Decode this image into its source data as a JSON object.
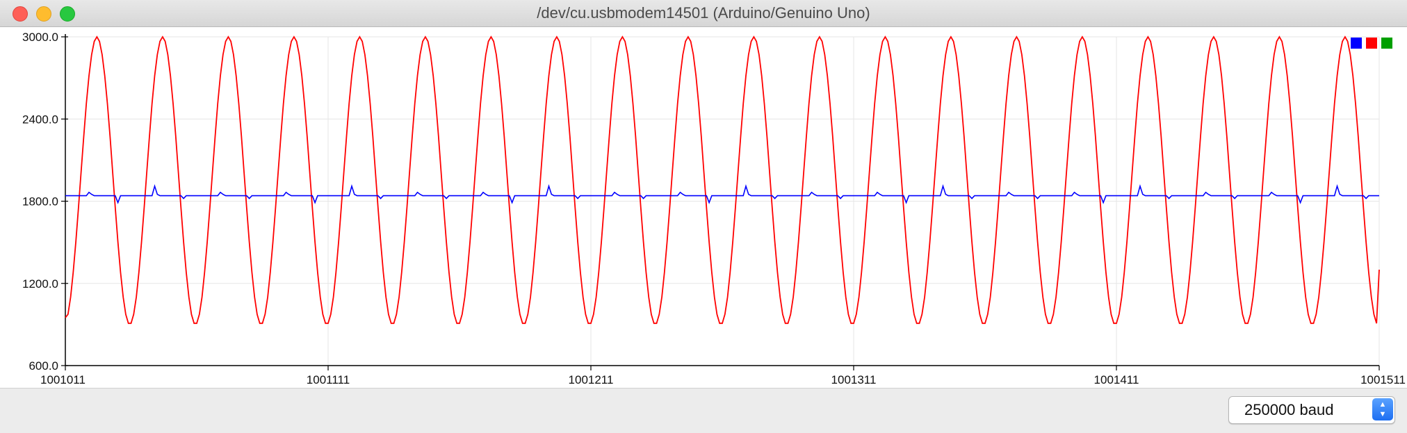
{
  "window": {
    "title": "/dev/cu.usbmodem14501 (Arduino/Genuino Uno)"
  },
  "colors": {
    "series_blue": "#0000ff",
    "series_red": "#ff0000",
    "series_green": "#00a000",
    "grid": "#e6e6e6",
    "axis": "#000000"
  },
  "footer": {
    "baud_label": "250000 baud",
    "arrows_icon": "up-down-chevron-icon"
  },
  "chart_data": {
    "type": "line",
    "title": "",
    "xlabel": "",
    "ylabel": "",
    "xlim": [
      1001011,
      1001511
    ],
    "ylim": [
      600,
      3000
    ],
    "x_ticks": [
      "1001011",
      "1001111",
      "1001211",
      "1001311",
      "1001411",
      "1001511"
    ],
    "y_ticks": [
      "3000.0",
      "2400.0",
      "1800.0",
      "1200.0",
      "600.0"
    ],
    "grid": true,
    "legend_placement": "top-right",
    "legend_entries": [
      "blue",
      "red",
      "green"
    ],
    "series": [
      {
        "color": "#ff0000",
        "x_start": 1001011,
        "x_end": 1001511,
        "description_values": {
          "min": 900,
          "max": 3000,
          "period": 25
        },
        "peaks_x": [
          1001023,
          1001048,
          1001073,
          1001098,
          1001123,
          1001148,
          1001173,
          1001198,
          1001223,
          1001248,
          1001273,
          1001298,
          1001323,
          1001348,
          1001373,
          1001398,
          1001423,
          1001448,
          1001473,
          1001498
        ],
        "end_value": 1300
      },
      {
        "color": "#0000ff",
        "x_start": 1001011,
        "x_end": 1001511,
        "baseline": 1840,
        "spike_high": 1910,
        "spike_low": 1790
      }
    ]
  }
}
